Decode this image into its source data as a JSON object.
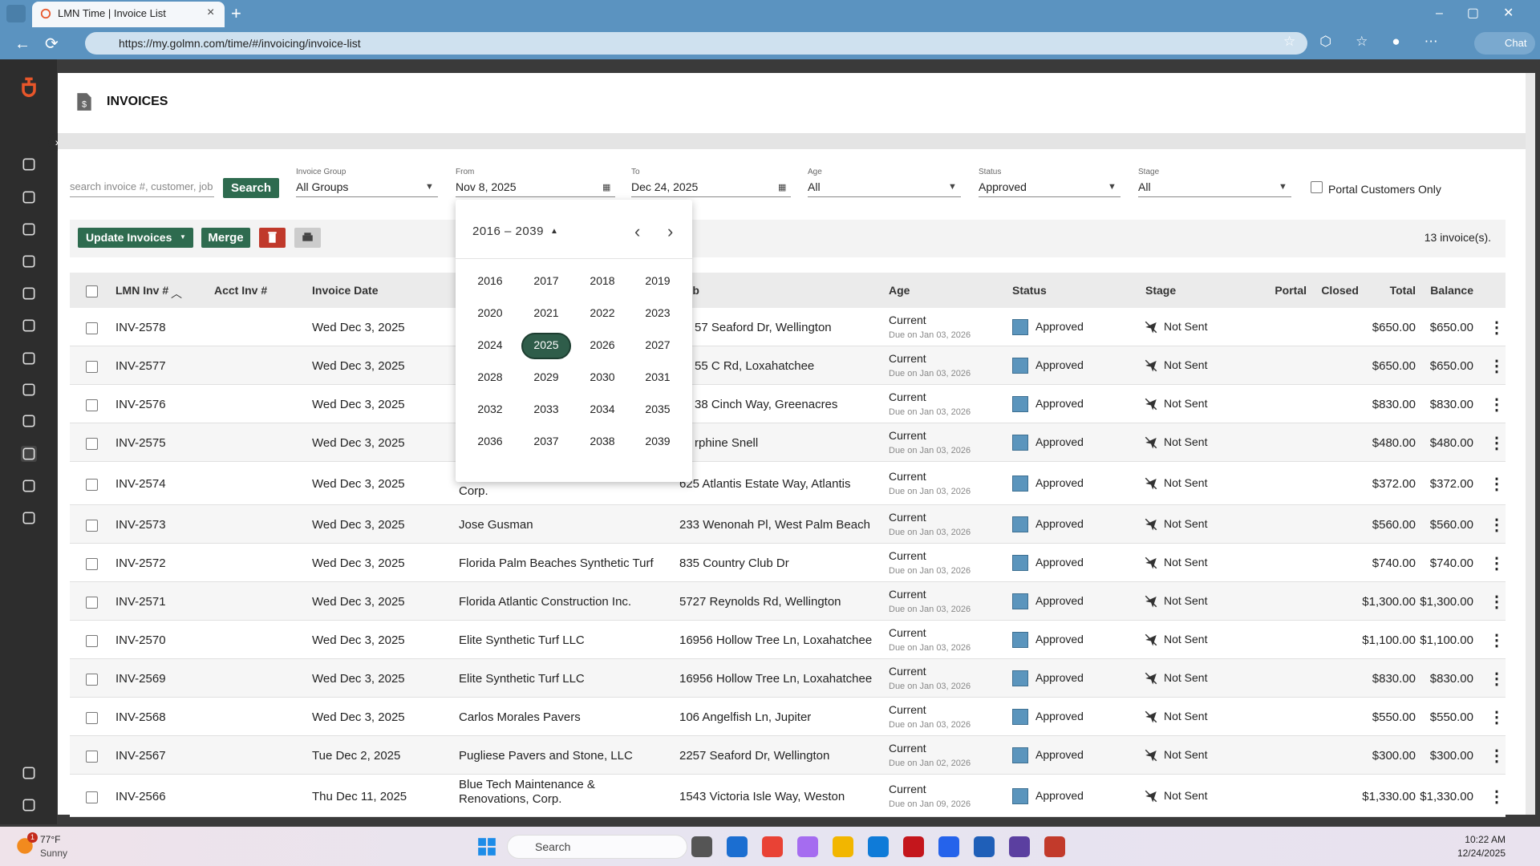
{
  "browser": {
    "tab_title": "LMN Time | Invoice List",
    "url": "https://my.golmn.com/time/#/invoicing/invoice-list",
    "chat": "Chat"
  },
  "header": {
    "title": "INVOICES"
  },
  "filters": {
    "search_placeholder": "search invoice #, customer, job",
    "search_button": "Search",
    "invoice_group": {
      "label": "Invoice Group",
      "value": "All Groups"
    },
    "from": {
      "label": "From",
      "value": "Nov 8, 2025"
    },
    "to": {
      "label": "To",
      "value": "Dec 24, 2025"
    },
    "age": {
      "label": "Age",
      "value": "All"
    },
    "status": {
      "label": "Status",
      "value": "Approved"
    },
    "stage": {
      "label": "Stage",
      "value": "All"
    },
    "portal_only": "Portal Customers Only"
  },
  "toolbar": {
    "update": "Update Invoices",
    "merge": "Merge",
    "count": "13 invoice(s)."
  },
  "datepicker": {
    "range": "2016 – 2039",
    "selected": 2025,
    "years": [
      2016,
      2017,
      2018,
      2019,
      2020,
      2021,
      2022,
      2023,
      2024,
      2025,
      2026,
      2027,
      2028,
      2029,
      2030,
      2031,
      2032,
      2033,
      2034,
      2035,
      2036,
      2037,
      2038,
      2039
    ]
  },
  "table": {
    "columns": [
      "LMN Inv #",
      "Acct Inv #",
      "Invoice Date",
      "Job",
      "Age",
      "Status",
      "Stage",
      "Portal",
      "Closed",
      "Total",
      "Balance"
    ],
    "rows": [
      {
        "number": "INV-2578",
        "date": "Wed Dec 3, 2025",
        "job": "57 Seaford Dr, Wellington",
        "age": "Current",
        "due": "Due on Jan 03, 2026",
        "status": "Approved",
        "stage": "Not Sent",
        "total": "$650.00",
        "balance": "$650.00"
      },
      {
        "number": "INV-2577",
        "date": "Wed Dec 3, 2025",
        "job": "55 C Rd, Loxahatchee",
        "age": "Current",
        "due": "Due on Jan 03, 2026",
        "status": "Approved",
        "stage": "Not Sent",
        "total": "$650.00",
        "balance": "$650.00"
      },
      {
        "number": "INV-2576",
        "date": "Wed Dec 3, 2025",
        "job": "38 Cinch Way, Greenacres",
        "age": "Current",
        "due": "Due on Jan 03, 2026",
        "status": "Approved",
        "stage": "Not Sent",
        "total": "$830.00",
        "balance": "$830.00"
      },
      {
        "number": "INV-2575",
        "date": "Wed Dec 3, 2025",
        "job": "rphine Snell",
        "age": "Current",
        "due": "Due on Jan 03, 2026",
        "status": "Approved",
        "stage": "Not Sent",
        "total": "$480.00",
        "balance": "$480.00"
      },
      {
        "number": "INV-2574",
        "date": "Wed Dec 3, 2025",
        "customer": "Corp.",
        "job": "625 Atlantis Estate Way, Atlantis",
        "age": "Current",
        "due": "Due on Jan 03, 2026",
        "status": "Approved",
        "stage": "Not Sent",
        "total": "$372.00",
        "balance": "$372.00"
      },
      {
        "number": "INV-2573",
        "date": "Wed Dec 3, 2025",
        "customer": "Jose Gusman",
        "job": "233 Wenonah Pl, West Palm Beach",
        "age": "Current",
        "due": "Due on Jan 03, 2026",
        "status": "Approved",
        "stage": "Not Sent",
        "total": "$560.00",
        "balance": "$560.00"
      },
      {
        "number": "INV-2572",
        "date": "Wed Dec 3, 2025",
        "customer": "Florida Palm Beaches Synthetic Turf",
        "job": "835 Country Club Dr",
        "age": "Current",
        "due": "Due on Jan 03, 2026",
        "status": "Approved",
        "stage": "Not Sent",
        "total": "$740.00",
        "balance": "$740.00"
      },
      {
        "number": "INV-2571",
        "date": "Wed Dec 3, 2025",
        "customer": "Florida Atlantic Construction Inc.",
        "job": "5727 Reynolds Rd, Wellington",
        "age": "Current",
        "due": "Due on Jan 03, 2026",
        "status": "Approved",
        "stage": "Not Sent",
        "total": "$1,300.00",
        "balance": "$1,300.00"
      },
      {
        "number": "INV-2570",
        "date": "Wed Dec 3, 2025",
        "customer": "Elite Synthetic Turf LLC",
        "job": "16956 Hollow Tree Ln, Loxahatchee",
        "age": "Current",
        "due": "Due on Jan 03, 2026",
        "status": "Approved",
        "stage": "Not Sent",
        "total": "$1,100.00",
        "balance": "$1,100.00"
      },
      {
        "number": "INV-2569",
        "date": "Wed Dec 3, 2025",
        "customer": "Elite Synthetic Turf LLC",
        "job": "16956 Hollow Tree Ln, Loxahatchee",
        "age": "Current",
        "due": "Due on Jan 03, 2026",
        "status": "Approved",
        "stage": "Not Sent",
        "total": "$830.00",
        "balance": "$830.00"
      },
      {
        "number": "INV-2568",
        "date": "Wed Dec 3, 2025",
        "customer": "Carlos Morales Pavers",
        "job": "106 Angelfish Ln, Jupiter",
        "age": "Current",
        "due": "Due on Jan 03, 2026",
        "status": "Approved",
        "stage": "Not Sent",
        "total": "$550.00",
        "balance": "$550.00"
      },
      {
        "number": "INV-2567",
        "date": "Tue Dec 2, 2025",
        "customer": "Pugliese Pavers and Stone, LLC",
        "job": "2257 Seaford Dr, Wellington",
        "age": "Current",
        "due": "Due on Jan 02, 2026",
        "status": "Approved",
        "stage": "Not Sent",
        "total": "$300.00",
        "balance": "$300.00"
      },
      {
        "number": "INV-2566",
        "date": "Thu Dec 11, 2025",
        "customer": "Blue Tech Maintenance & Renovations, Corp.",
        "job": "1543 Victoria Isle Way, Weston",
        "age": "Current",
        "due": "Due on Jan 09, 2026",
        "status": "Approved",
        "stage": "Not Sent",
        "total": "$1,330.00",
        "balance": "$1,330.00"
      }
    ]
  },
  "taskbar": {
    "temperature": "77°F",
    "weather": "Sunny",
    "badge": "1",
    "search": "Search",
    "time": "10:22 AM",
    "date": "12/24/2025"
  }
}
